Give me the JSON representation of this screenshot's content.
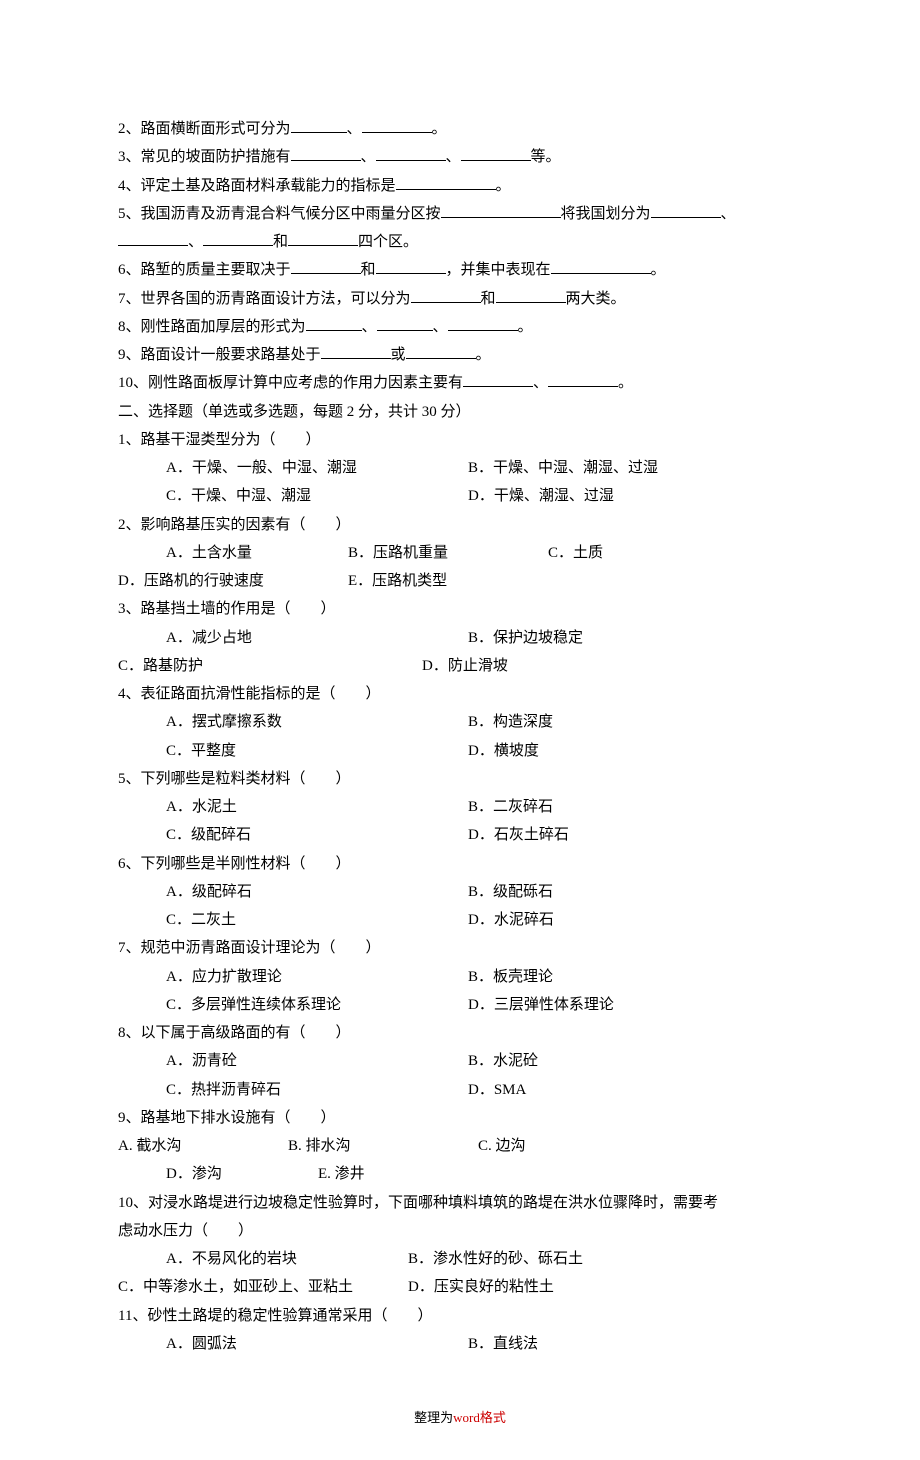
{
  "fill": {
    "q2": {
      "prefix": "2、路面横断面形式可分为",
      "sep1": "、",
      "suffix": "。"
    },
    "q3": {
      "prefix": "3、常见的坡面防护措施有",
      "sep": "、",
      "suffix": "等。"
    },
    "q4": {
      "prefix": "4、评定土基及路面材料承载能力的指标是",
      "suffix": "。"
    },
    "q5": {
      "prefix": "5、我国沥青及沥青混合料气候分区中雨量分区按",
      "mid": "将我国划分为",
      "sep": "、",
      "line2_mid": "和",
      "line2_suffix": "四个区。"
    },
    "q6": {
      "prefix": "6、路堑的质量主要取决于",
      "mid1": "和",
      "mid2": "，并集中表现在",
      "suffix": "。"
    },
    "q7": {
      "prefix": "7、世界各国的沥青路面设计方法，可以分为",
      "mid": "和",
      "suffix": "两大类。"
    },
    "q8": {
      "prefix": "8、刚性路面加厚层的形式为",
      "sep": "、",
      "suffix": "。"
    },
    "q9": {
      "prefix": "9、路面设计一般要求路基处于",
      "mid": "或",
      "suffix": "。"
    },
    "q10": {
      "prefix": "10、刚性路面板厚计算中应考虑的作用力因素主要有",
      "sep": "、",
      "suffix": "。"
    }
  },
  "section2_title": "二、选择题（单选或多选题，每题 2 分，共计 30 分）",
  "mc": {
    "q1": {
      "stem": "1、路基干湿类型分为（　　）",
      "a": "A．干燥、一般、中湿、潮湿",
      "b": "B．干燥、中湿、潮湿、过湿",
      "c": "C．干燥、中湿、潮湿",
      "d": "D．干燥、潮湿、过湿"
    },
    "q2": {
      "stem": "2、影响路基压实的因素有（　　）",
      "a": "A．土含水量",
      "b": "B．压路机重量",
      "c": "C．土质",
      "d": "D．压路机的行驶速度",
      "e": "E．压路机类型"
    },
    "q3": {
      "stem": "3、路基挡土墙的作用是（　　）",
      "a": "A．减少占地",
      "b": "B．保护边坡稳定",
      "c": "C．路基防护",
      "d": "D．防止滑坡"
    },
    "q4": {
      "stem": "4、表征路面抗滑性能指标的是（　　）",
      "a": "A．摆式摩擦系数",
      "b": "B．构造深度",
      "c": "C．平整度",
      "d": "D．横坡度"
    },
    "q5": {
      "stem": "5、下列哪些是粒料类材料（　　）",
      "a": "A．水泥土",
      "b": "B．二灰碎石",
      "c": "C．级配碎石",
      "d": "D．石灰土碎石"
    },
    "q6": {
      "stem": "6、下列哪些是半刚性材料（　　）",
      "a": "A．级配碎石",
      "b": "B．级配砾石",
      "c": "C．二灰土",
      "d": "D．水泥碎石"
    },
    "q7": {
      "stem": "7、规范中沥青路面设计理论为（　　）",
      "a": "A．应力扩散理论",
      "b": "B．板壳理论",
      "c": "C．多层弹性连续体系理论",
      "d": "D．三层弹性体系理论"
    },
    "q8": {
      "stem": "8、以下属于高级路面的有（　　）",
      "a": "A．沥青砼",
      "b": "B．水泥砼",
      "c": "C．热拌沥青碎石",
      "d": "D．SMA"
    },
    "q9": {
      "stem": "9、路基地下排水设施有（　　）",
      "a": "A. 截水沟",
      "b": "B. 排水沟",
      "c": "C. 边沟",
      "d": "D．渗沟",
      "e": "E. 渗井"
    },
    "q10": {
      "stem1": "10、对浸水路堤进行边坡稳定性验算时，下面哪种填料填筑的路堤在洪水位骤降时，需要考",
      "stem2": "虑动水压力（　　）",
      "a": "A．不易风化的岩块",
      "b": "B．渗水性好的砂、砾石土",
      "c": "C．中等渗水土，如亚砂上、亚粘土",
      "d": "D．压实良好的粘性土"
    },
    "q11": {
      "stem": "11、砂性土路堤的稳定性验算通常采用（　　）",
      "a": "A．圆弧法",
      "b": "B．直线法"
    }
  },
  "footer": {
    "text1": "整理为",
    "text2": "word",
    "text3": "格式"
  }
}
